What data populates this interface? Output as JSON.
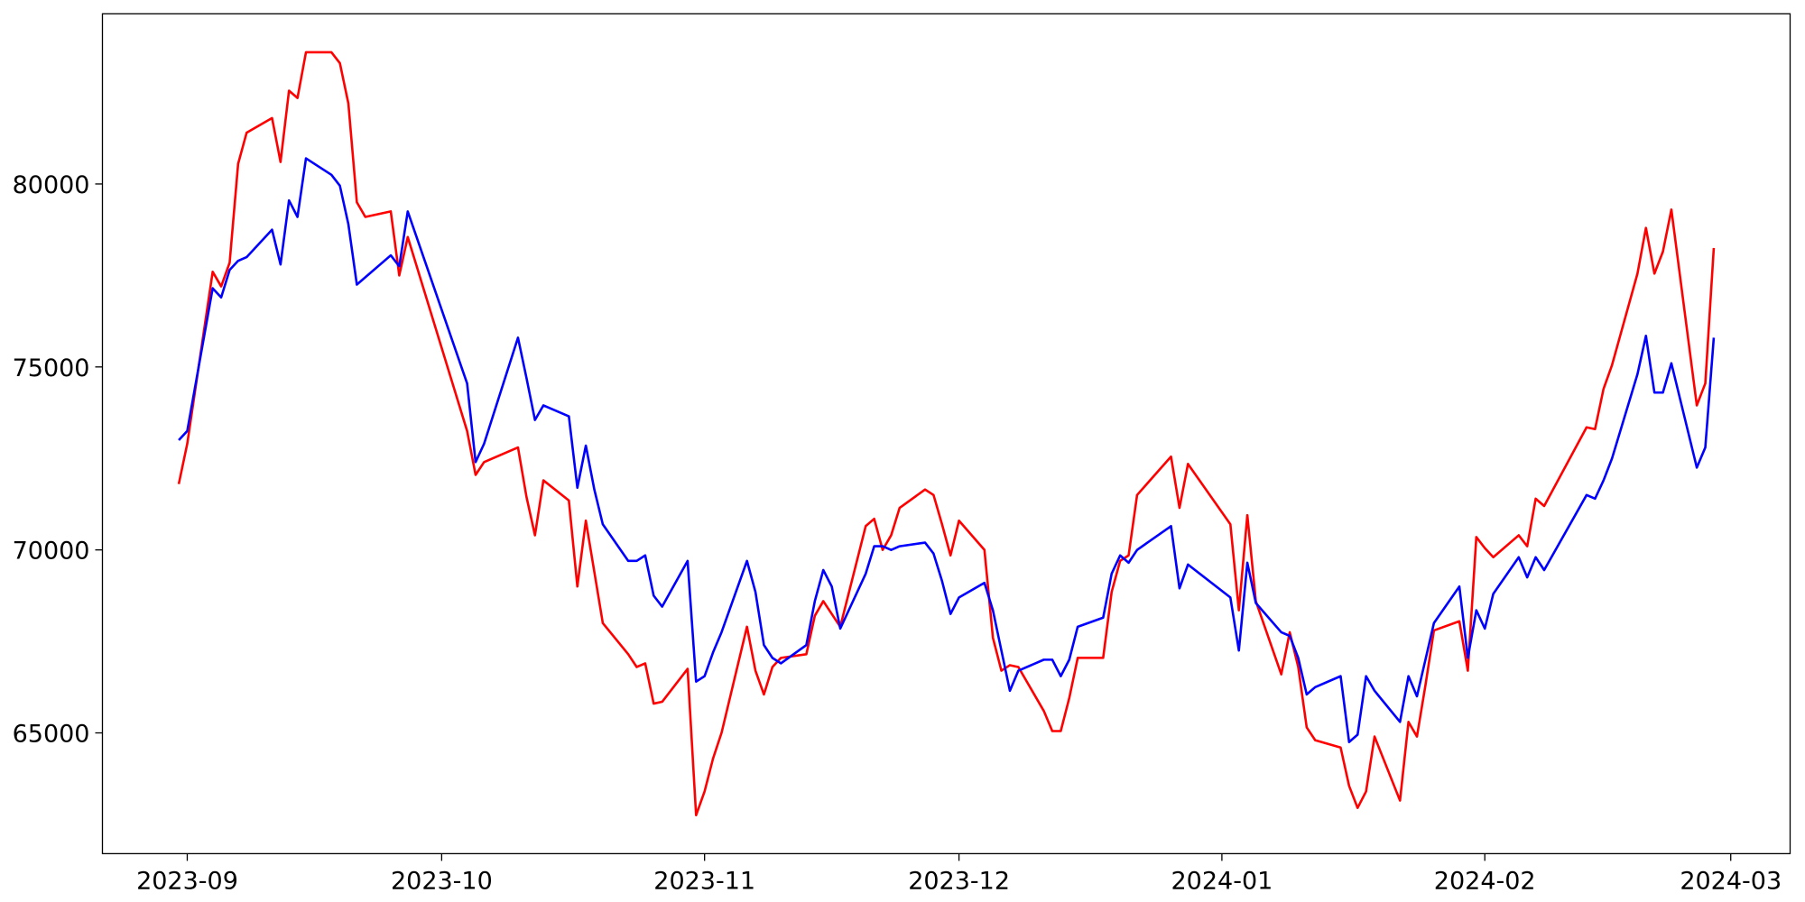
{
  "chart_data": {
    "type": "line",
    "x": [
      "2023-08-31",
      "2023-09-01",
      "2023-09-04",
      "2023-09-05",
      "2023-09-06",
      "2023-09-07",
      "2023-09-08",
      "2023-09-11",
      "2023-09-12",
      "2023-09-13",
      "2023-09-14",
      "2023-09-15",
      "2023-09-18",
      "2023-09-19",
      "2023-09-20",
      "2023-09-21",
      "2023-09-22",
      "2023-09-25",
      "2023-09-26",
      "2023-09-27",
      "2023-10-04",
      "2023-10-05",
      "2023-10-06",
      "2023-10-10",
      "2023-10-11",
      "2023-10-12",
      "2023-10-13",
      "2023-10-16",
      "2023-10-17",
      "2023-10-18",
      "2023-10-19",
      "2023-10-20",
      "2023-10-23",
      "2023-10-24",
      "2023-10-25",
      "2023-10-26",
      "2023-10-27",
      "2023-10-30",
      "2023-10-31",
      "2023-11-01",
      "2023-11-02",
      "2023-11-03",
      "2023-11-06",
      "2023-11-07",
      "2023-11-08",
      "2023-11-09",
      "2023-11-10",
      "2023-11-13",
      "2023-11-14",
      "2023-11-15",
      "2023-11-16",
      "2023-11-17",
      "2023-11-20",
      "2023-11-21",
      "2023-11-22",
      "2023-11-23",
      "2023-11-24",
      "2023-11-27",
      "2023-11-28",
      "2023-11-29",
      "2023-11-30",
      "2023-12-01",
      "2023-12-04",
      "2023-12-05",
      "2023-12-06",
      "2023-12-07",
      "2023-12-08",
      "2023-12-11",
      "2023-12-12",
      "2023-12-13",
      "2023-12-14",
      "2023-12-15",
      "2023-12-18",
      "2023-12-19",
      "2023-12-20",
      "2023-12-21",
      "2023-12-22",
      "2023-12-26",
      "2023-12-27",
      "2023-12-28",
      "2024-01-02",
      "2024-01-03",
      "2024-01-04",
      "2024-01-05",
      "2024-01-08",
      "2024-01-09",
      "2024-01-10",
      "2024-01-11",
      "2024-01-12",
      "2024-01-15",
      "2024-01-16",
      "2024-01-17",
      "2024-01-18",
      "2024-01-19",
      "2024-01-22",
      "2024-01-23",
      "2024-01-24",
      "2024-01-25",
      "2024-01-26",
      "2024-01-29",
      "2024-01-30",
      "2024-01-31",
      "2024-02-01",
      "2024-02-02",
      "2024-02-05",
      "2024-02-06",
      "2024-02-07",
      "2024-02-08",
      "2024-02-13",
      "2024-02-14",
      "2024-02-15",
      "2024-02-16",
      "2024-02-19",
      "2024-02-20",
      "2024-02-21",
      "2024-02-22",
      "2024-02-23",
      "2024-02-26",
      "2024-02-27",
      "2024-02-28"
    ],
    "series": [
      {
        "color": "#ff0000",
        "values": [
          71800,
          72900,
          77600,
          77200,
          77850,
          80550,
          81400,
          81800,
          80600,
          82550,
          82350,
          83600,
          83600,
          83300,
          82200,
          79500,
          79100,
          79250,
          77500,
          78550,
          73250,
          72050,
          72400,
          72800,
          71450,
          70400,
          71900,
          71350,
          69000,
          70800,
          69400,
          68000,
          67150,
          66800,
          66900,
          65800,
          65850,
          66750,
          62750,
          63400,
          64300,
          65000,
          67900,
          66700,
          66050,
          66800,
          67050,
          67150,
          68200,
          68600,
          68250,
          67900,
          70650,
          70850,
          70000,
          70400,
          71150,
          71650,
          71500,
          70700,
          69850,
          70800,
          70000,
          67600,
          66700,
          66850,
          66800,
          65600,
          65050,
          65050,
          65950,
          67050,
          67050,
          68850,
          69700,
          69850,
          71500,
          72550,
          71150,
          72350,
          70700,
          68350,
          70950,
          68600,
          66600,
          67750,
          66800,
          65150,
          64800,
          64600,
          63550,
          62950,
          63400,
          64900,
          63150,
          65300,
          64900,
          66300,
          67800,
          68050,
          66700,
          70350,
          70050,
          69800,
          70400,
          70100,
          71400,
          71200,
          73350,
          73300,
          74400,
          75050,
          77550,
          78800,
          77550,
          78150,
          79300,
          73950,
          74550,
          78250
        ]
      },
      {
        "color": "#0000ff",
        "values": [
          73000,
          73250,
          77150,
          76900,
          77650,
          77900,
          78000,
          78750,
          77800,
          79550,
          79100,
          80700,
          80250,
          79950,
          78900,
          77250,
          77450,
          78050,
          77750,
          79250,
          74550,
          72400,
          72900,
          75800,
          74700,
          73550,
          73950,
          73650,
          71700,
          72850,
          71650,
          70700,
          69700,
          69700,
          69850,
          68750,
          68450,
          69700,
          66400,
          66550,
          67200,
          67750,
          69700,
          68850,
          67400,
          67050,
          66900,
          67400,
          68600,
          69450,
          69000,
          67850,
          69350,
          70100,
          70100,
          70000,
          70100,
          70200,
          69900,
          69150,
          68250,
          68700,
          69100,
          68350,
          67250,
          66150,
          66700,
          67000,
          67000,
          66550,
          67000,
          67900,
          68150,
          69350,
          69850,
          69650,
          70000,
          70650,
          68950,
          69600,
          68700,
          67250,
          69650,
          68550,
          67750,
          67650,
          67050,
          66050,
          66250,
          66550,
          64750,
          64950,
          66550,
          66150,
          65300,
          66550,
          66000,
          67000,
          68000,
          69000,
          67050,
          68350,
          67850,
          68800,
          69800,
          69250,
          69800,
          69450,
          71500,
          71400,
          71900,
          72500,
          74800,
          75850,
          74300,
          74300,
          75100,
          72250,
          72800,
          75800
        ]
      }
    ],
    "xlim": [
      "2023-08-22",
      "2024-03-08"
    ],
    "xticks": [
      {
        "value": "2023-09-01",
        "label": "2023-09"
      },
      {
        "value": "2023-10-01",
        "label": "2023-10"
      },
      {
        "value": "2023-11-01",
        "label": "2023-11"
      },
      {
        "value": "2023-12-01",
        "label": "2023-12"
      },
      {
        "value": "2024-01-01",
        "label": "2024-01"
      },
      {
        "value": "2024-02-01",
        "label": "2024-02"
      },
      {
        "value": "2024-03-01",
        "label": "2024-03"
      }
    ],
    "ylim": [
      61700,
      84650
    ],
    "yticks": [
      65000,
      70000,
      75000,
      80000
    ],
    "grid": false
  }
}
